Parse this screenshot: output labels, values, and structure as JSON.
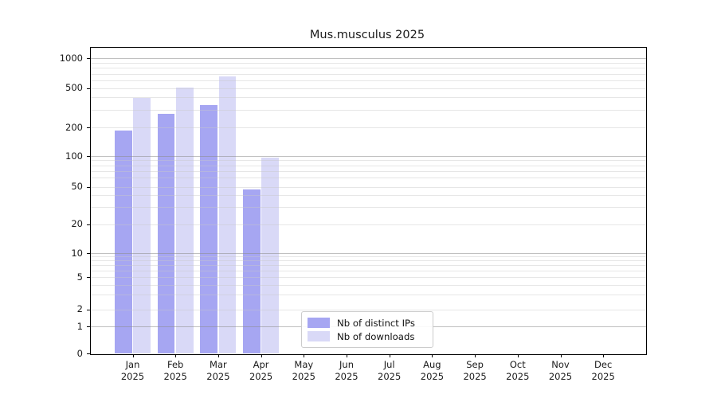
{
  "chart_data": {
    "type": "bar",
    "title": "Mus.musculus 2025",
    "categories": [
      "Jan",
      "Feb",
      "Mar",
      "Apr",
      "May",
      "Jun",
      "Jul",
      "Aug",
      "Sep",
      "Oct",
      "Nov",
      "Dec"
    ],
    "category_year": "2025",
    "series": [
      {
        "name": "Nb of distinct IPs",
        "color": "#a6a6f2",
        "values": [
          186,
          270,
          330,
          46,
          0,
          0,
          0,
          0,
          0,
          0,
          0,
          0
        ]
      },
      {
        "name": "Nb of downloads",
        "color": "#d9d9f7",
        "values": [
          395,
          505,
          655,
          97,
          0,
          0,
          0,
          0,
          0,
          0,
          0,
          0
        ]
      }
    ],
    "xlabel": "",
    "ylabel": "",
    "ytick_labels": [
      "1000",
      "500",
      "200",
      "100",
      "50",
      "20",
      "10",
      "5",
      "2",
      "1",
      "0"
    ],
    "yticks": [
      1000,
      500,
      200,
      100,
      50,
      20,
      10,
      5,
      2,
      1,
      0
    ],
    "ylim": [
      0,
      1000
    ],
    "scale": "log-like (logarithmic above 10, compressed linear-log below)",
    "grid": "horizontal only; minor log lines light gray, decade lines (1,10,100,1000) darker gray",
    "legend_position": "inside, bottom center-left"
  },
  "colors": {
    "bar_distinct_ips": "#a6a6f2",
    "bar_downloads": "#d9d9f7",
    "grid_minor": "#e8e8e8",
    "grid_major": "#c4c4c4",
    "axis": "#000000",
    "text": "#1a1a1a",
    "legend_border": "#cccccc",
    "background": "#ffffff"
  }
}
